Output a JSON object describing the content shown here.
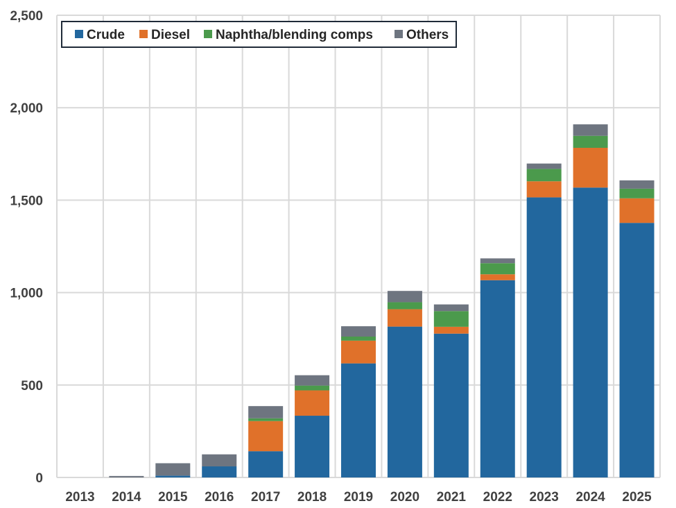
{
  "chart_data": {
    "type": "bar",
    "stacked": true,
    "title": "",
    "xlabel": "",
    "ylabel": "",
    "ylim": [
      0,
      2500
    ],
    "yticks": [
      0,
      500,
      1000,
      1500,
      2000,
      2500
    ],
    "ytick_labels": [
      "0",
      "500",
      "1,000",
      "1,500",
      "2,000",
      "2,500"
    ],
    "grid": true,
    "legend_position": "top-left",
    "categories": [
      "2013",
      "2014",
      "2015",
      "2016",
      "2017",
      "2018",
      "2019",
      "2020",
      "2021",
      "2022",
      "2023",
      "2024",
      "2025"
    ],
    "series": [
      {
        "name": "Crude",
        "color": "#22679E",
        "values": [
          0,
          0,
          10,
          60,
          142,
          334,
          617,
          816,
          778,
          1067,
          1515,
          1568,
          1377
        ]
      },
      {
        "name": "Diesel",
        "color": "#E0712A",
        "values": [
          0,
          0,
          0,
          0,
          163,
          137,
          123,
          94,
          37,
          32,
          87,
          215,
          133
        ]
      },
      {
        "name": "Naphtha/blending comps",
        "color": "#4B9A4C",
        "values": [
          0,
          0,
          0,
          0,
          15,
          26,
          22,
          38,
          85,
          60,
          67,
          65,
          52
        ]
      },
      {
        "name": "Others",
        "color": "#6E7580",
        "values": [
          0,
          8,
          67,
          65,
          66,
          56,
          56,
          61,
          36,
          26,
          29,
          62,
          45
        ]
      }
    ]
  }
}
